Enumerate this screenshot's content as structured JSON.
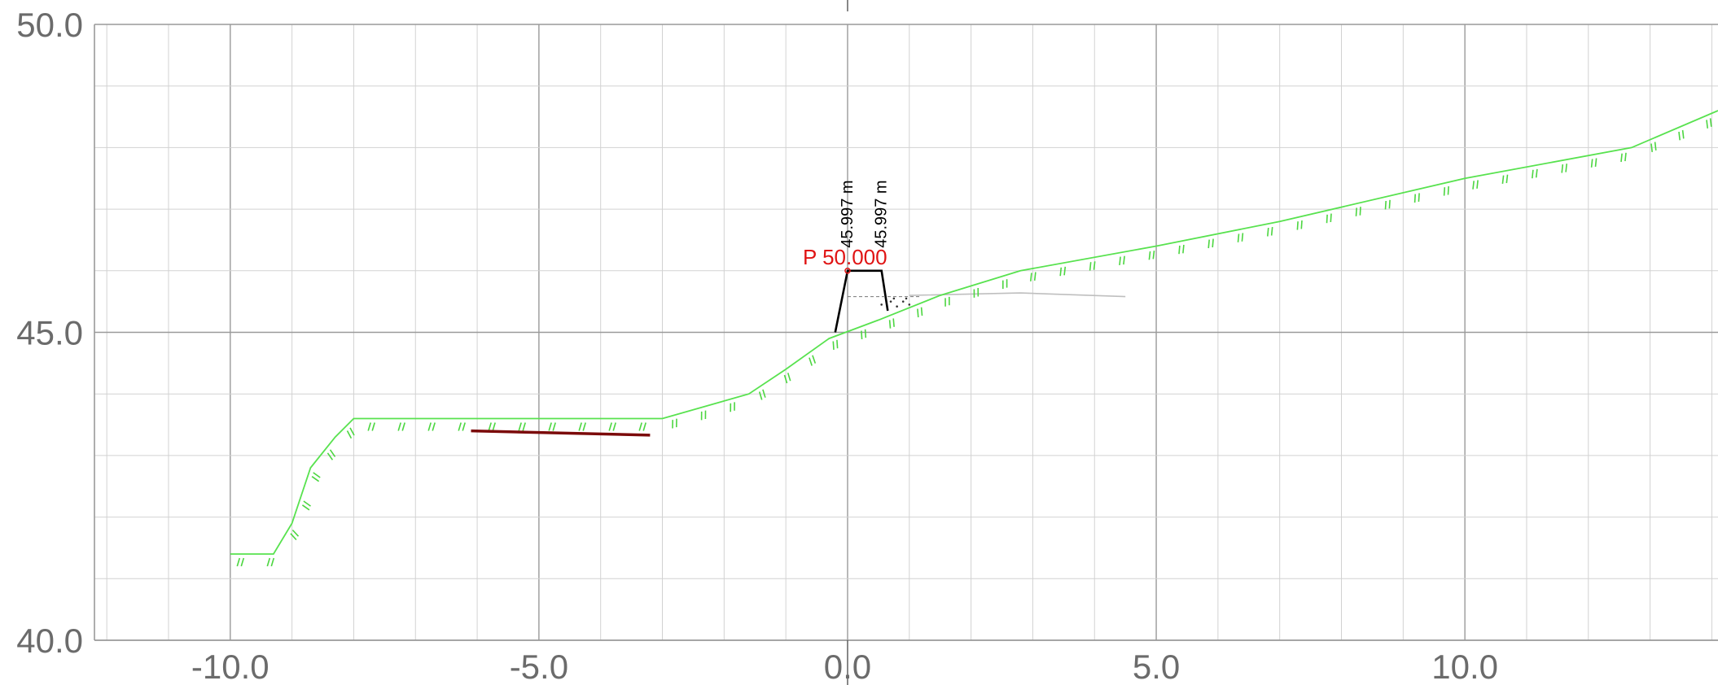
{
  "chart_data": {
    "type": "cross-section",
    "x_range": [
      -12.2,
      14.1
    ],
    "y_range": [
      40.0,
      50.0
    ],
    "x_ticks": [
      -10.0,
      -5.0,
      0.0,
      5.0,
      10.0
    ],
    "x_tick_labels": [
      "-10.0",
      "-5.0",
      "0.0",
      "5.0",
      "10.0"
    ],
    "y_ticks": [
      40.0,
      45.0,
      50.0
    ],
    "y_tick_labels": [
      "40.0",
      "45.0",
      "50.0"
    ],
    "grid": true,
    "grid_minor_step": 1.0,
    "ground_profile": [
      [
        -10.0,
        41.4
      ],
      [
        -9.3,
        41.4
      ],
      [
        -9.0,
        41.9
      ],
      [
        -8.7,
        42.8
      ],
      [
        -8.3,
        43.3
      ],
      [
        -8.0,
        43.6
      ],
      [
        -7.0,
        43.6
      ],
      [
        -3.0,
        43.6
      ],
      [
        -1.6,
        44.0
      ],
      [
        -1.0,
        44.4
      ],
      [
        -0.3,
        44.9
      ],
      [
        0.5,
        45.2
      ],
      [
        1.5,
        45.6
      ],
      [
        2.8,
        46.0
      ],
      [
        5.0,
        46.4
      ],
      [
        7.0,
        46.8
      ],
      [
        10.0,
        47.5
      ],
      [
        12.7,
        48.0
      ],
      [
        14.1,
        48.6
      ]
    ],
    "existing_line": [
      [
        1.0,
        45.6
      ],
      [
        2.8,
        45.64
      ],
      [
        4.5,
        45.58
      ]
    ],
    "section_outline": [
      [
        -0.2,
        45.0
      ],
      [
        0.0,
        46.0
      ],
      [
        0.55,
        46.0
      ],
      [
        0.65,
        45.35
      ]
    ],
    "water_line": [
      [
        0.0,
        45.58
      ],
      [
        1.2,
        45.58
      ]
    ],
    "pipe_segment": [
      [
        -6.1,
        43.4
      ],
      [
        -3.2,
        43.33
      ]
    ],
    "point_marker": {
      "label": "P 50.000",
      "x": 0.0,
      "y": 46.0
    },
    "dimension_labels": [
      {
        "text": "45.997 m",
        "x": 0.0,
        "y": 46.0
      },
      {
        "text": "45.997 m",
        "x": 0.55,
        "y": 46.0
      }
    ],
    "colors": {
      "ground": "#58e24f",
      "hatch": "#4cd640",
      "pipe": "#7b0a0a",
      "outline": "#000000",
      "marker": "#e01414",
      "grid_major": "#9a9a9a",
      "grid_minor": "#d2d2d2",
      "existing": "#bfbfbf"
    }
  }
}
